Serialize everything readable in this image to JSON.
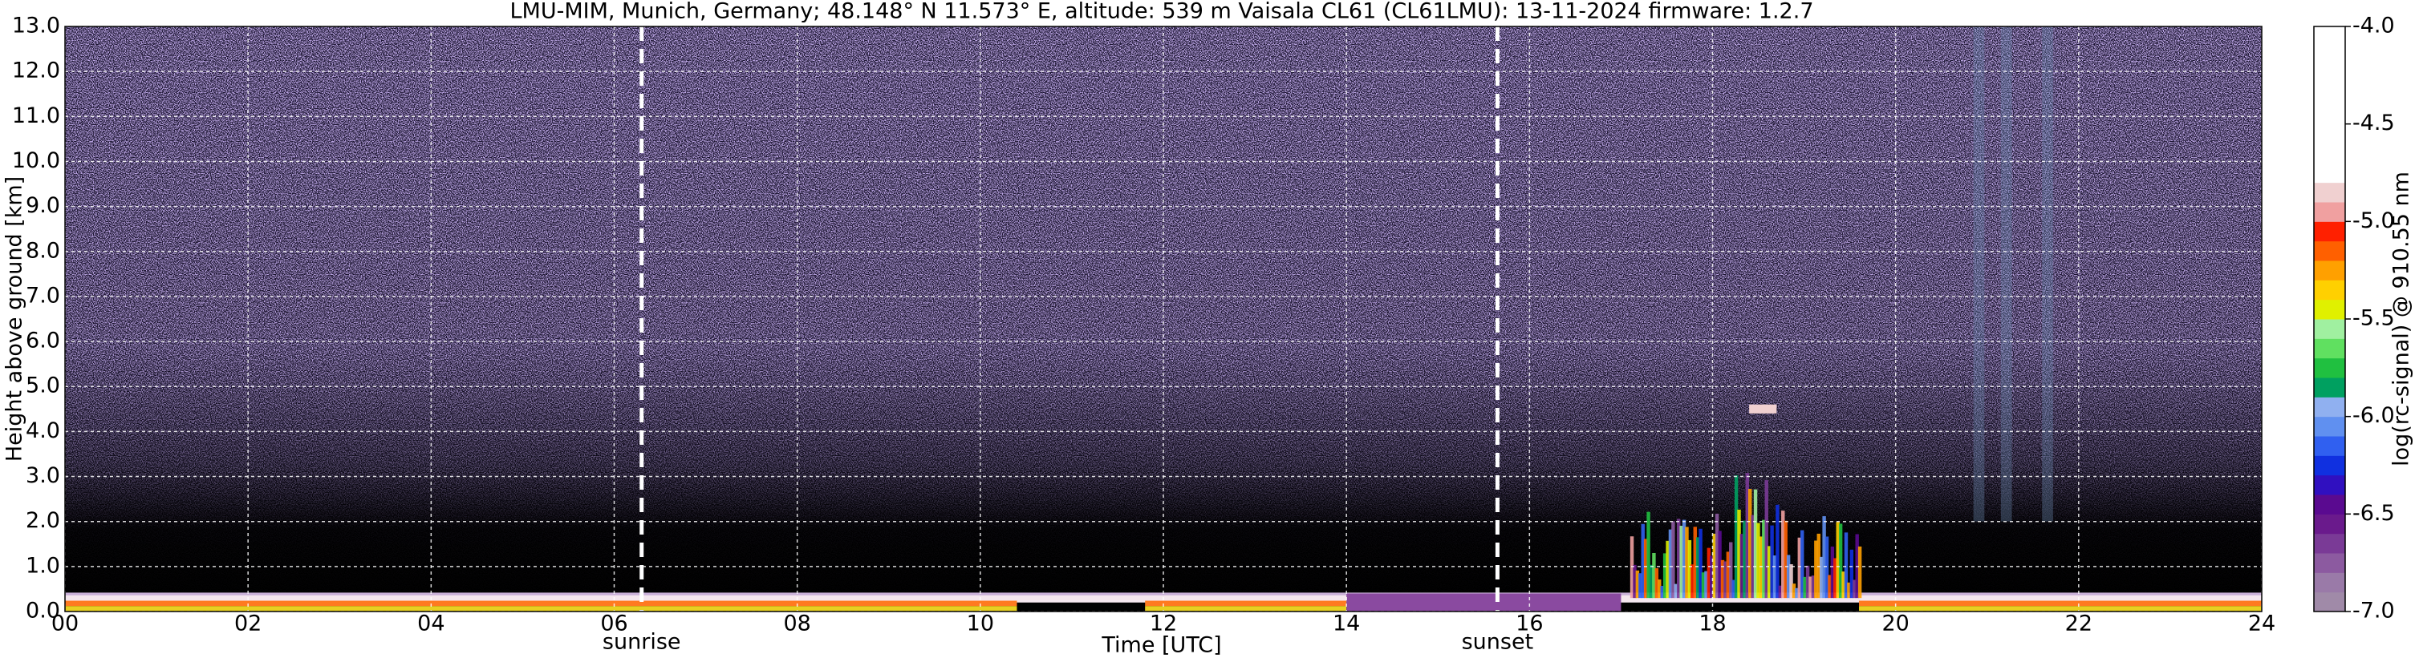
{
  "chart_data": {
    "type": "heatmap",
    "title": "LMU-MIM, Munich, Germany; 48.148° N 11.573° E, altitude: 539 m    Vaisala CL61 (CL61LMU): 13-11-2024    firmware: 1.2.7",
    "xlabel": "Time [UTC]",
    "ylabel": "Height above ground [km]",
    "xlim": [
      0,
      24
    ],
    "xticks": [
      {
        "value": 0,
        "label": "00"
      },
      {
        "value": 2,
        "label": "02"
      },
      {
        "value": 4,
        "label": "04"
      },
      {
        "value": 6,
        "label": "06"
      },
      {
        "value": 8,
        "label": "08"
      },
      10,
      12,
      14,
      16,
      18,
      20,
      22,
      24
    ],
    "ylim": [
      0,
      13
    ],
    "yticks": [
      {
        "value": 0,
        "label": "0.0"
      },
      {
        "value": 1,
        "label": "1.0"
      },
      {
        "value": 2,
        "label": "2.0"
      },
      {
        "value": 3,
        "label": "3.0"
      },
      {
        "value": 4,
        "label": "4.0"
      },
      {
        "value": 5,
        "label": "5.0"
      },
      {
        "value": 6,
        "label": "6.0"
      },
      {
        "value": 7,
        "label": "7.0"
      },
      {
        "value": 8,
        "label": "8.0"
      },
      {
        "value": 9,
        "label": "9.0"
      },
      {
        "value": 10,
        "label": "10.0"
      },
      {
        "value": 11,
        "label": "11.0"
      },
      {
        "value": 12,
        "label": "12.0"
      },
      {
        "value": 13,
        "label": "13.0"
      }
    ],
    "grid": true,
    "annotations": [
      {
        "text": "sunrise",
        "x": 6.3
      },
      {
        "text": "sunset",
        "x": 15.65
      }
    ],
    "colorbar": {
      "label": "log(rc-signal) @ 910.55 nm",
      "clim": [
        -7,
        -4
      ],
      "ticks": [
        {
          "value": -4,
          "label": "-4.0"
        },
        {
          "value": -4.5,
          "label": "-4.5"
        },
        {
          "value": -5,
          "label": "-5.0"
        },
        {
          "value": -5.5,
          "label": "-5.5"
        },
        {
          "value": -6,
          "label": "-6.0"
        },
        {
          "value": -6.5,
          "label": "-6.5"
        },
        {
          "value": -7,
          "label": "-7.0"
        }
      ],
      "colors": [
        "#a08aa8",
        "#9a7aa8",
        "#8c5aa0",
        "#7a3a96",
        "#6a1a8c",
        "#5a0a90",
        "#3010c0",
        "#1030e0",
        "#3060f0",
        "#6090f0",
        "#90b0f0",
        "#00a060",
        "#20c040",
        "#60e060",
        "#a0f0a0",
        "#e0f000",
        "#ffd000",
        "#ffa000",
        "#ff6000",
        "#ff2000",
        "#f0a0a0",
        "#f0d0d0",
        "#ffffff",
        "#ffffff",
        "#ffffff",
        "#ffffff",
        "#ffffff",
        "#ffffff",
        "#ffffff",
        "#ffffff"
      ]
    }
  }
}
